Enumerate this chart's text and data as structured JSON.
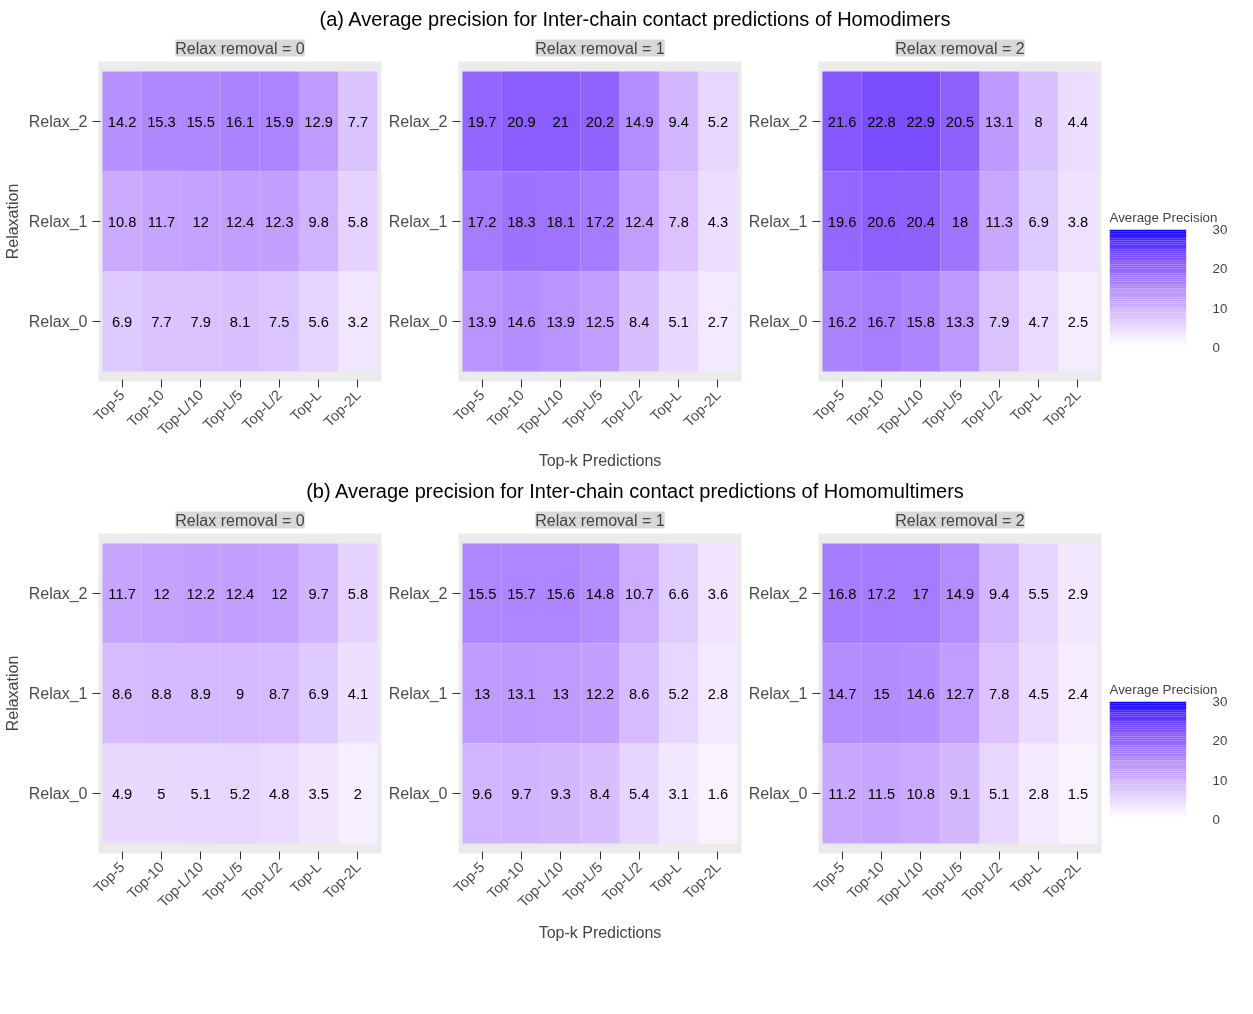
{
  "chart_data": [
    {
      "type": "heatmap",
      "subtitle": "Relax removal = 0",
      "ylabel": "Relaxation",
      "categories": [
        "Top-5",
        "Top-10",
        "Top-L/10",
        "Top-L/5",
        "Top-L/2",
        "Top-L",
        "Top-2L"
      ],
      "y_categories": [
        "Relax_2",
        "Relax_1",
        "Relax_0"
      ],
      "cells": [
        [
          14.2,
          15.3,
          15.5,
          16.1,
          15.9,
          12.9,
          7.7
        ],
        [
          10.8,
          11.7,
          12,
          12.4,
          12.3,
          9.8,
          5.8
        ],
        [
          6.9,
          7.7,
          7.9,
          8.1,
          7.5,
          5.6,
          3.2
        ]
      ],
      "data_labels": true,
      "colors": [
        "#ffffff",
        "#0000ff"
      ]
    },
    {
      "type": "heatmap",
      "title": "(a) Average precision for Inter-chain contact predictions of Homodimers",
      "subtitle": "Relax removal = 1",
      "xlabel": "Top-k Predictions",
      "categories": [
        "Top-5",
        "Top-10",
        "Top-L/10",
        "Top-L/5",
        "Top-L/2",
        "Top-L",
        "Top-2L"
      ],
      "y_categories": [
        "Relax_2",
        "Relax_1",
        "Relax_0"
      ],
      "cells": [
        [
          19.7,
          20.9,
          21,
          20.2,
          14.9,
          9.4,
          5.2
        ],
        [
          17.2,
          18.3,
          18.1,
          17.2,
          12.4,
          7.8,
          4.3
        ],
        [
          13.9,
          14.6,
          13.9,
          12.5,
          8.4,
          5.1,
          2.7
        ]
      ],
      "data_labels": true,
      "colors": [
        "#ffffff",
        "#0000ff"
      ]
    },
    {
      "type": "heatmap",
      "subtitle": "Relax removal = 2",
      "categories": [
        "Top-5",
        "Top-10",
        "Top-L/10",
        "Top-L/5",
        "Top-L/2",
        "Top-L",
        "Top-2L"
      ],
      "y_categories": [
        "Relax_2",
        "Relax_1",
        "Relax_0"
      ],
      "cells": [
        [
          21.6,
          22.8,
          22.9,
          20.5,
          13.1,
          8,
          4.4
        ],
        [
          19.6,
          20.6,
          20.4,
          18,
          11.3,
          6.9,
          3.8
        ],
        [
          16.2,
          16.7,
          15.8,
          13.3,
          7.9,
          4.7,
          2.5
        ]
      ],
      "data_labels": true,
      "clim": [
        0,
        30
      ],
      "cticks": [
        0,
        10,
        20,
        30
      ],
      "clabel": "Average Precision",
      "colors": [
        "#ffffff",
        "#0000ff"
      ]
    },
    {
      "type": "heatmap",
      "subtitle": "Relax removal = 0",
      "ylabel": "Relaxation",
      "categories": [
        "Top-5",
        "Top-10",
        "Top-L/10",
        "Top-L/5",
        "Top-L/2",
        "Top-L",
        "Top-2L"
      ],
      "y_categories": [
        "Relax_2",
        "Relax_1",
        "Relax_0"
      ],
      "cells": [
        [
          11.7,
          12,
          12.2,
          12.4,
          12,
          9.7,
          5.8
        ],
        [
          8.6,
          8.8,
          8.9,
          9,
          8.7,
          6.9,
          4.1
        ],
        [
          4.9,
          5,
          5.1,
          5.2,
          4.8,
          3.5,
          2
        ]
      ],
      "data_labels": true,
      "colors": [
        "#ffffff",
        "#0000ff"
      ]
    },
    {
      "type": "heatmap",
      "title": "(b) Average precision for Inter-chain contact predictions of Homomultimers",
      "subtitle": "Relax removal = 1",
      "xlabel": "Top-k Predictions",
      "categories": [
        "Top-5",
        "Top-10",
        "Top-L/10",
        "Top-L/5",
        "Top-L/2",
        "Top-L",
        "Top-2L"
      ],
      "y_categories": [
        "Relax_2",
        "Relax_1",
        "Relax_0"
      ],
      "cells": [
        [
          15.5,
          15.7,
          15.6,
          14.8,
          10.7,
          6.6,
          3.6
        ],
        [
          13,
          13.1,
          13,
          12.2,
          8.6,
          5.2,
          2.8
        ],
        [
          9.6,
          9.7,
          9.3,
          8.4,
          5.4,
          3.1,
          1.6
        ]
      ],
      "data_labels": true,
      "colors": [
        "#ffffff",
        "#0000ff"
      ]
    },
    {
      "type": "heatmap",
      "subtitle": "Relax removal = 2",
      "categories": [
        "Top-5",
        "Top-10",
        "Top-L/10",
        "Top-L/5",
        "Top-L/2",
        "Top-L",
        "Top-2L"
      ],
      "y_categories": [
        "Relax_2",
        "Relax_1",
        "Relax_0"
      ],
      "cells": [
        [
          16.8,
          17.2,
          17,
          14.9,
          9.4,
          5.5,
          2.9
        ],
        [
          14.7,
          15,
          14.6,
          12.7,
          7.8,
          4.5,
          2.4
        ],
        [
          11.2,
          11.5,
          10.8,
          9.1,
          5.1,
          2.8,
          1.5
        ]
      ],
      "data_labels": true,
      "clim": [
        0,
        30
      ],
      "cticks": [
        0,
        10,
        20,
        30
      ],
      "clabel": "Average Precision",
      "colors": [
        "#ffffff",
        "#0000ff"
      ]
    }
  ]
}
